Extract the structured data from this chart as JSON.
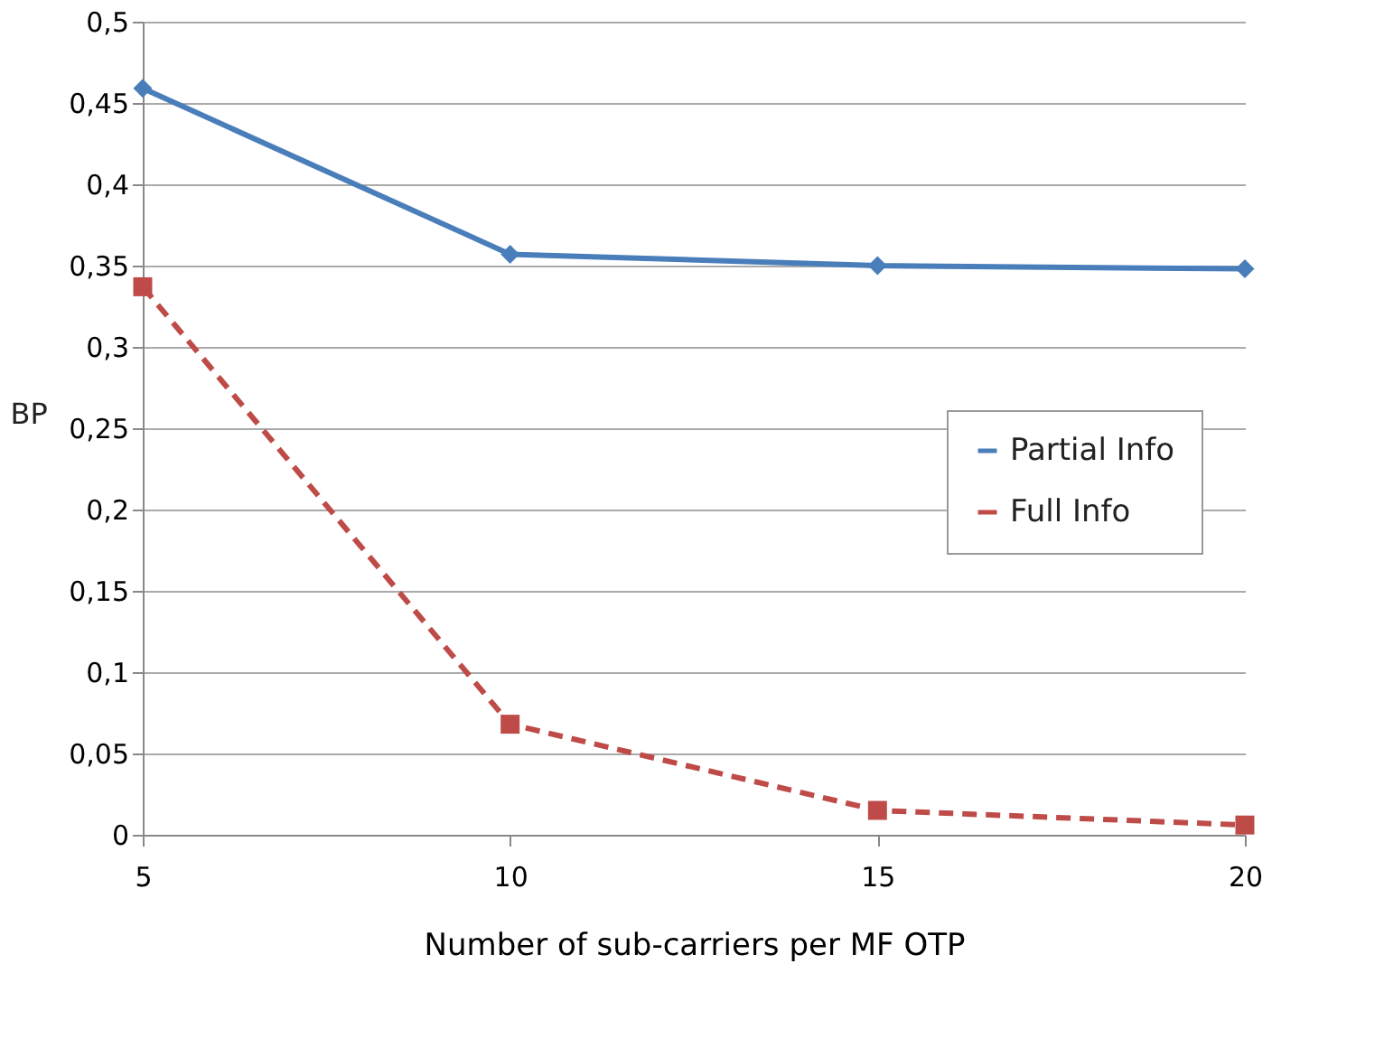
{
  "chart_data": {
    "type": "line",
    "xlabel": "Number of sub-carriers per MF OTP",
    "ylabel": "BP",
    "x": [
      5,
      10,
      15,
      20
    ],
    "series": [
      {
        "name": "Partial Info",
        "color": "#4a7ebb",
        "values": [
          0.459,
          0.357,
          0.35,
          0.348
        ],
        "marker": "diamond",
        "line_style": "solid"
      },
      {
        "name": "Full Info",
        "color": "#be4b48",
        "values": [
          0.337,
          0.068,
          0.015,
          0.006
        ],
        "marker": "square",
        "line_style": "dashed"
      }
    ],
    "xlim": [
      5,
      20
    ],
    "xticks": [
      5,
      10,
      15,
      20
    ],
    "ylim": [
      0,
      0.5
    ],
    "yticks": [
      0,
      {
        "value": 0.05,
        "label": "0,05"
      },
      {
        "value": 0.1,
        "label": "0,1"
      },
      {
        "value": 0.15,
        "label": "0,15"
      },
      {
        "value": 0.2,
        "label": "0,2"
      },
      {
        "value": 0.25,
        "label": "0,25"
      },
      {
        "value": 0.3,
        "label": "0,3"
      },
      {
        "value": 0.35,
        "label": "0,35"
      },
      {
        "value": 0.4,
        "label": "0,4"
      },
      {
        "value": 0.45,
        "label": "0,45"
      },
      {
        "value": 0.5,
        "label": "0,5"
      }
    ],
    "grid": "y",
    "legend": "right"
  }
}
